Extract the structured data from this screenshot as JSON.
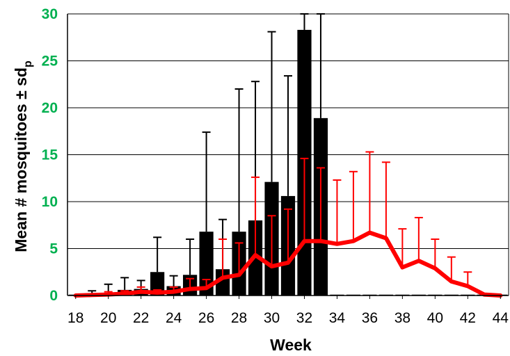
{
  "chart_data": {
    "type": "bar+line",
    "xlabel": "Week",
    "ylabel": {
      "main": "Mean # mosquitoes ± sd",
      "subscript": "p"
    },
    "xlim": [
      18,
      44
    ],
    "ylim": [
      0,
      30
    ],
    "yticks": [
      0,
      5,
      10,
      15,
      20,
      25,
      30
    ],
    "xticks": [
      18,
      20,
      22,
      24,
      26,
      28,
      30,
      32,
      34,
      36,
      38,
      40,
      42,
      44
    ],
    "grid": "horizontal",
    "legend": "none",
    "colors": {
      "bars": "#000000",
      "line": "#ff0000",
      "ytick": "#00b050"
    },
    "bar_series": {
      "x": [
        18,
        19,
        20,
        21,
        22,
        23,
        24,
        25,
        26,
        27,
        28,
        29,
        30,
        31,
        32,
        33,
        34,
        35,
        36,
        37,
        38,
        39,
        40,
        41,
        42,
        43,
        44
      ],
      "mean": [
        0,
        0.1,
        0.2,
        0.6,
        0.7,
        2.5,
        1.0,
        2.2,
        6.8,
        2.8,
        6.8,
        8.0,
        12.1,
        10.6,
        28.3,
        18.9,
        0,
        0,
        0,
        0,
        0,
        0,
        0,
        0,
        0,
        0,
        0
      ],
      "sd_upper": [
        0,
        0.5,
        1.2,
        1.9,
        1.6,
        6.2,
        2.1,
        6.0,
        17.4,
        8.1,
        22.0,
        22.8,
        28.1,
        23.4,
        32,
        31,
        0,
        0,
        0,
        0,
        0,
        0,
        0,
        0,
        0,
        0,
        0
      ]
    },
    "line_series": {
      "x": [
        18,
        19,
        20,
        21,
        22,
        23,
        24,
        25,
        26,
        27,
        28,
        29,
        30,
        31,
        32,
        33,
        34,
        35,
        36,
        37,
        38,
        39,
        40,
        41,
        42,
        43,
        44
      ],
      "mean": [
        0,
        0.05,
        0.1,
        0.2,
        0.4,
        0.3,
        0.4,
        0.7,
        0.8,
        1.9,
        2.2,
        4.3,
        3.1,
        3.5,
        5.8,
        5.8,
        5.5,
        5.8,
        6.7,
        6.1,
        3.0,
        3.7,
        2.9,
        1.5,
        1.0,
        0.1,
        0
      ],
      "sd_upper": [
        0,
        0,
        0.4,
        0.5,
        0.9,
        0.6,
        0.9,
        1.8,
        1.7,
        6.0,
        5.6,
        12.6,
        8.5,
        9.2,
        14.6,
        13.6,
        12.3,
        13.2,
        15.3,
        14.2,
        7.1,
        8.3,
        6.0,
        4.1,
        2.5,
        0,
        0
      ]
    }
  }
}
